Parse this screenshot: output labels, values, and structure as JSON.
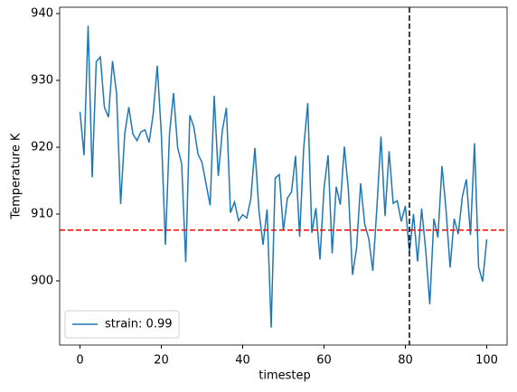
{
  "chart_data": {
    "type": "line",
    "x_label": "timestep",
    "y_label": "Temperature K",
    "x": [
      0,
      1,
      2,
      3,
      4,
      5,
      6,
      7,
      8,
      9,
      10,
      11,
      12,
      13,
      14,
      15,
      16,
      17,
      18,
      19,
      20,
      21,
      22,
      23,
      24,
      25,
      26,
      27,
      28,
      29,
      30,
      31,
      32,
      33,
      34,
      35,
      36,
      37,
      38,
      39,
      40,
      41,
      42,
      43,
      44,
      45,
      46,
      47,
      48,
      49,
      50,
      51,
      52,
      53,
      54,
      55,
      56,
      57,
      58,
      59,
      60,
      61,
      62,
      63,
      64,
      65,
      66,
      67,
      68,
      69,
      70,
      71,
      72,
      73,
      74,
      75,
      76,
      77,
      78,
      79,
      80,
      81,
      82,
      83,
      84,
      85,
      86,
      87,
      88,
      89,
      90,
      91,
      92,
      93,
      94,
      95,
      96,
      97,
      98,
      99,
      100
    ],
    "series": [
      {
        "name": "strain: 0.99",
        "color": "#1f77b4",
        "values": [
          925.3,
          918.8,
          938.2,
          915.5,
          932.8,
          933.5,
          926,
          924.5,
          932.9,
          928,
          911.5,
          922,
          926,
          922,
          921,
          922.3,
          922.6,
          920.7,
          925,
          932.2,
          922,
          905.4,
          922,
          928.1,
          920,
          917.5,
          902.8,
          924.8,
          923,
          919,
          917.7,
          914.5,
          911.3,
          927.7,
          915.7,
          922.5,
          925.9,
          910.2,
          911.8,
          909,
          909.9,
          909.4,
          912.3,
          919.9,
          910.5,
          905.4,
          910.7,
          893,
          915.4,
          915.9,
          907.5,
          912.4,
          913.3,
          918.7,
          906.6,
          919.9,
          926.6,
          907.2,
          910.9,
          903.2,
          913.9,
          918.8,
          904.1,
          914.1,
          911.4,
          920.1,
          913.5,
          900.9,
          904.9,
          914.6,
          908.5,
          906.3,
          901.5,
          911,
          921.6,
          909.7,
          919.4,
          911.6,
          912,
          908.9,
          911.2,
          904.3,
          910,
          902.9,
          910.8,
          904.6,
          896.5,
          909.3,
          906.5,
          917.2,
          910.6,
          902,
          909.3,
          907,
          912.6,
          915.2,
          906.9,
          920.6,
          902.1,
          899.9,
          906.2
        ]
      }
    ],
    "xlim": [
      -5,
      105
    ],
    "ylim": [
      890.4,
      940.95
    ],
    "xticks": [
      0,
      20,
      40,
      60,
      80,
      100
    ],
    "yticks": [
      900,
      910,
      920,
      930,
      940
    ],
    "hline": 907.6,
    "hline_color": "#ff0000",
    "vline": 81,
    "vline_color": "#000000",
    "legend": "lower left"
  }
}
